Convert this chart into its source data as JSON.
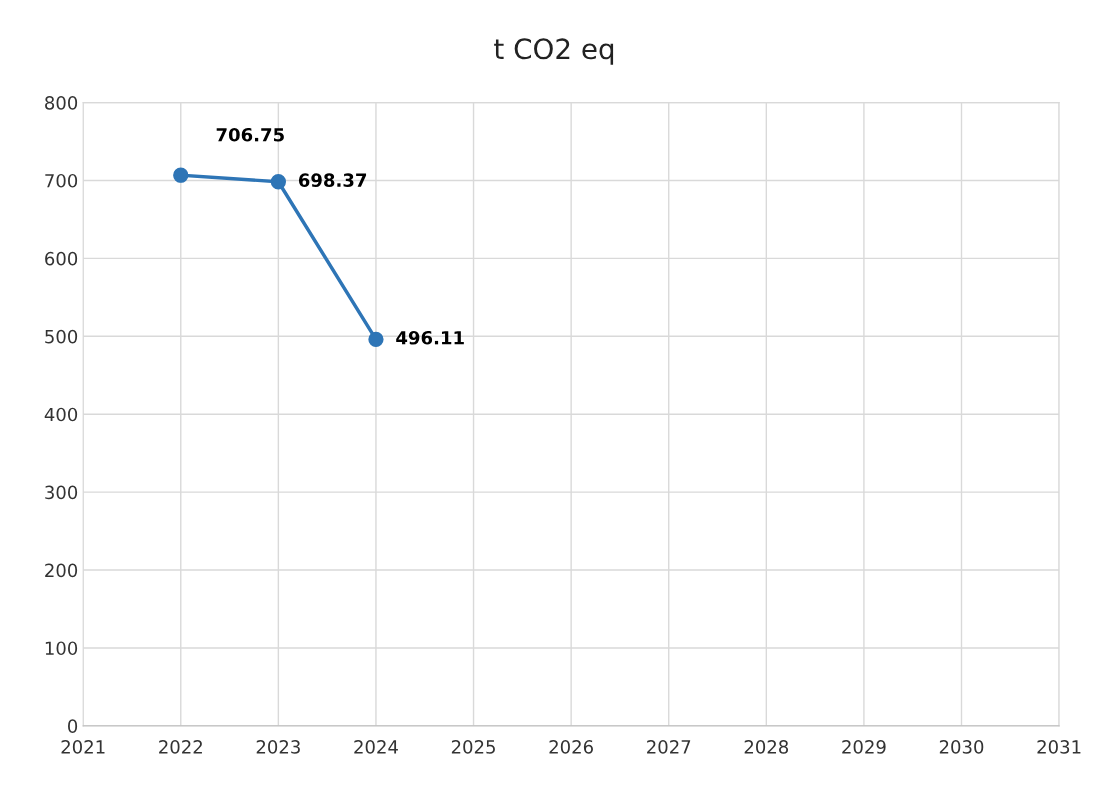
{
  "chart_data": {
    "type": "line",
    "title": "t CO2 eq",
    "x": [
      2022,
      2023,
      2024
    ],
    "series": [
      {
        "color": "#2e75b6",
        "values": [
          706.75,
          698.37,
          496.11
        ]
      }
    ],
    "xlim": [
      2021,
      2031
    ],
    "xticks": [
      2021,
      2022,
      2023,
      2024,
      2025,
      2026,
      2027,
      2028,
      2029,
      2030,
      2031
    ],
    "ylim": [
      0,
      800
    ],
    "yticks": [
      0,
      100,
      200,
      300,
      400,
      500,
      600,
      700,
      800
    ],
    "grid": true,
    "marker": "circle",
    "line_style": "solid",
    "data_labels": true
  }
}
